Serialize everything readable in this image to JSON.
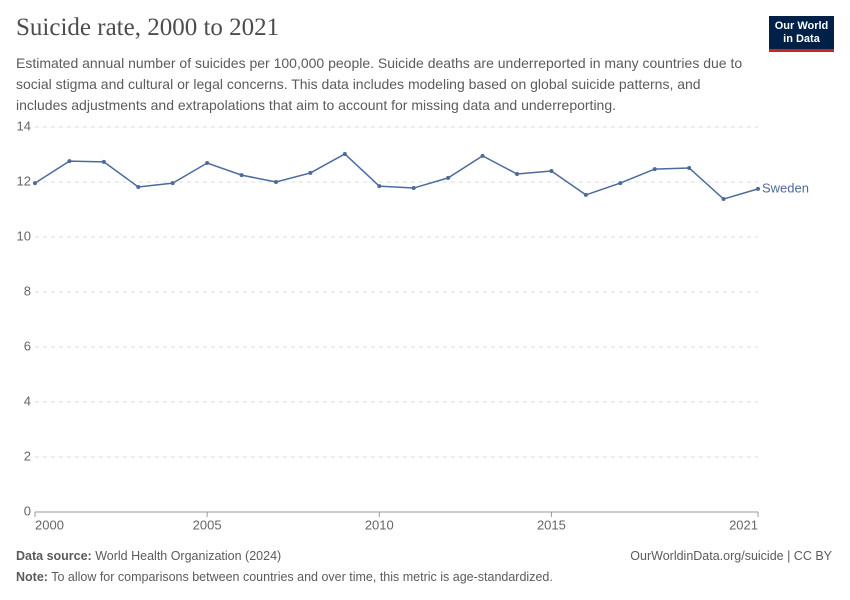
{
  "header": {
    "title": "Suicide rate, 2000 to 2021",
    "subtitle": "Estimated annual number of suicides per 100,000 people. Suicide deaths are underreported in many countries due to social stigma and cultural or legal concerns. This data includes modeling based on global suicide patterns, and includes adjustments and extrapolations that aim to account for missing data and underreporting.",
    "logo": [
      "Our World",
      "in Data"
    ]
  },
  "chart_data": {
    "type": "line",
    "x": [
      2000,
      2001,
      2002,
      2003,
      2004,
      2005,
      2006,
      2007,
      2008,
      2009,
      2010,
      2011,
      2012,
      2013,
      2014,
      2015,
      2016,
      2017,
      2018,
      2019,
      2020,
      2021
    ],
    "series": [
      {
        "name": "Sweden",
        "color": "#4c6a9c",
        "values": [
          11.96,
          12.76,
          12.73,
          11.82,
          11.96,
          12.69,
          12.25,
          12.0,
          12.33,
          13.02,
          11.85,
          11.78,
          12.15,
          12.95,
          12.29,
          12.4,
          11.53,
          11.96,
          12.47,
          12.51,
          11.38,
          11.75
        ]
      }
    ],
    "xlim": [
      2000,
      2021
    ],
    "xticks": [
      2000,
      2005,
      2010,
      2015,
      2021
    ],
    "ylim": [
      0,
      14
    ],
    "yticks": [
      0,
      2,
      4,
      6,
      8,
      10,
      12,
      14
    ],
    "grid": true
  },
  "footer": {
    "source_label": "Data source:",
    "source": "World Health Organization (2024)",
    "url": "OurWorldinData.org/suicide | CC BY",
    "note_label": "Note:",
    "note": "To allow for comparisons between countries and over time, this metric is age-standardized."
  }
}
